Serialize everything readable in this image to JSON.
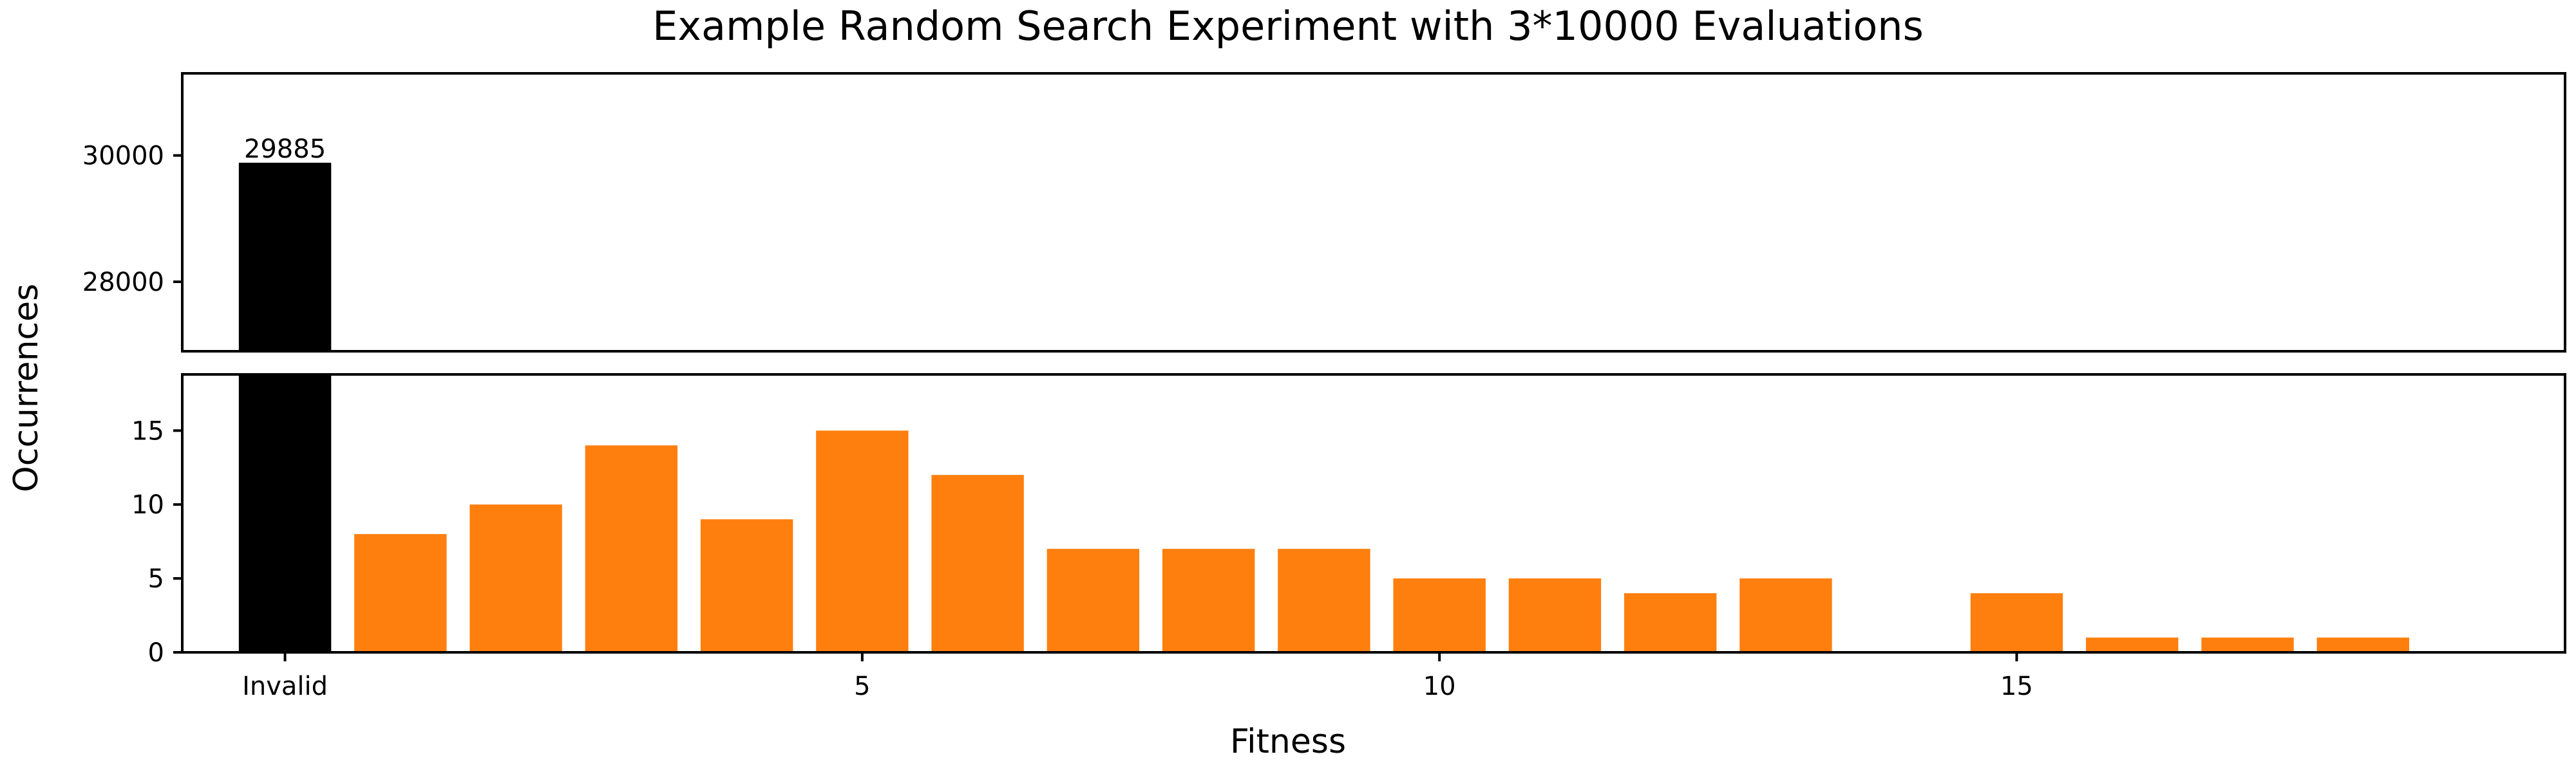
{
  "chart_data": {
    "type": "bar",
    "title": "Example Random Search Experiment with 3*10000 Evaluations",
    "xlabel": "Fitness",
    "ylabel": "Occurrences",
    "broken_y_axis": true,
    "upper_panel_ylim": [
      26900,
      31300
    ],
    "upper_panel_yticks": [
      28000,
      30000
    ],
    "lower_panel_ylim": [
      0,
      18.8
    ],
    "lower_panel_yticks": [
      0,
      5,
      10,
      15
    ],
    "x_tick_labels": [
      {
        "x": 0,
        "label": "Invalid"
      },
      {
        "x": 5,
        "label": "5"
      },
      {
        "x": 10,
        "label": "10"
      },
      {
        "x": 15,
        "label": "15"
      }
    ],
    "bars": [
      {
        "x": 0,
        "value": 29885,
        "label": "29885",
        "color": "#000000"
      },
      {
        "x": 1,
        "value": 8,
        "color": "#ff7f0e"
      },
      {
        "x": 2,
        "value": 10,
        "color": "#ff7f0e"
      },
      {
        "x": 3,
        "value": 14,
        "color": "#ff7f0e"
      },
      {
        "x": 4,
        "value": 9,
        "color": "#ff7f0e"
      },
      {
        "x": 5,
        "value": 15,
        "color": "#ff7f0e"
      },
      {
        "x": 6,
        "value": 12,
        "color": "#ff7f0e"
      },
      {
        "x": 7,
        "value": 7,
        "color": "#ff7f0e"
      },
      {
        "x": 8,
        "value": 7,
        "color": "#ff7f0e"
      },
      {
        "x": 9,
        "value": 7,
        "color": "#ff7f0e"
      },
      {
        "x": 10,
        "value": 5,
        "color": "#ff7f0e"
      },
      {
        "x": 11,
        "value": 5,
        "color": "#ff7f0e"
      },
      {
        "x": 12,
        "value": 4,
        "color": "#ff7f0e"
      },
      {
        "x": 13,
        "value": 5,
        "color": "#ff7f0e"
      },
      {
        "x": 15,
        "value": 4,
        "color": "#ff7f0e"
      },
      {
        "x": 16,
        "value": 1,
        "color": "#ff7f0e"
      },
      {
        "x": 17,
        "value": 1,
        "color": "#ff7f0e"
      },
      {
        "x": 18,
        "value": 1,
        "color": "#ff7f0e"
      }
    ],
    "xlim": [
      -0.89,
      19.75
    ],
    "grid": false,
    "legend": "none"
  }
}
